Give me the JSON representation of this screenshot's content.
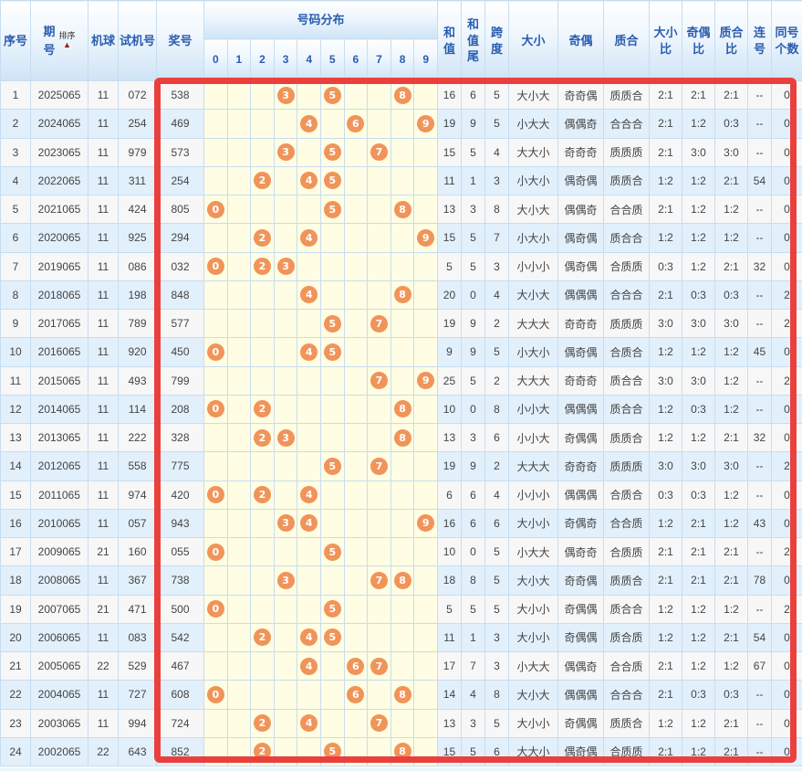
{
  "colors": {
    "header_text": "#2A5DB0",
    "ball_fill": "#F0945A",
    "highlight_border": "#EA403D",
    "row_odd_bg": "#F7F7F7",
    "row_even_bg": "#E2F0FB",
    "dist_bg": "#FFFDE3",
    "grid_line": "#C7DDF0"
  },
  "table": {
    "headers": {
      "seq": "序号",
      "period_char1": "期",
      "period_char2": "号",
      "sort_label": "排序",
      "sort_arrow": "▲",
      "machine": "机球",
      "test_no": "试机号",
      "prize_no": "奖号",
      "distribution": "号码分布",
      "digits": [
        "0",
        "1",
        "2",
        "3",
        "4",
        "5",
        "6",
        "7",
        "8",
        "9"
      ],
      "sum": "和值",
      "sum_tail": "和值尾",
      "span": "跨度",
      "size": "大小",
      "parity": "奇偶",
      "prime": "质合",
      "size_ratio": "大小比",
      "parity_ratio": "奇偶比",
      "prime_ratio": "质合比",
      "consecutive": "连号",
      "same_count": "同号个数"
    },
    "rows": [
      {
        "seq": "1",
        "period": "2025065",
        "machine": "11",
        "test": "072",
        "prize": "538",
        "balls": [
          3,
          5,
          8
        ],
        "sum": "16",
        "sum_tail": "6",
        "span": "5",
        "size": "大小大",
        "parity": "奇奇偶",
        "prime": "质质合",
        "size_ratio": "2:1",
        "parity_ratio": "2:1",
        "prime_ratio": "2:1",
        "consecutive": "--",
        "same_count": "0"
      },
      {
        "seq": "2",
        "period": "2024065",
        "machine": "11",
        "test": "254",
        "prize": "469",
        "balls": [
          4,
          6,
          9
        ],
        "sum": "19",
        "sum_tail": "9",
        "span": "5",
        "size": "小大大",
        "parity": "偶偶奇",
        "prime": "合合合",
        "size_ratio": "2:1",
        "parity_ratio": "1:2",
        "prime_ratio": "0:3",
        "consecutive": "--",
        "same_count": "0"
      },
      {
        "seq": "3",
        "period": "2023065",
        "machine": "11",
        "test": "979",
        "prize": "573",
        "balls": [
          3,
          5,
          7
        ],
        "sum": "15",
        "sum_tail": "5",
        "span": "4",
        "size": "大大小",
        "parity": "奇奇奇",
        "prime": "质质质",
        "size_ratio": "2:1",
        "parity_ratio": "3:0",
        "prime_ratio": "3:0",
        "consecutive": "--",
        "same_count": "0"
      },
      {
        "seq": "4",
        "period": "2022065",
        "machine": "11",
        "test": "311",
        "prize": "254",
        "balls": [
          2,
          4,
          5
        ],
        "sum": "11",
        "sum_tail": "1",
        "span": "3",
        "size": "小大小",
        "parity": "偶奇偶",
        "prime": "质质合",
        "size_ratio": "1:2",
        "parity_ratio": "1:2",
        "prime_ratio": "2:1",
        "consecutive": "54",
        "same_count": "0"
      },
      {
        "seq": "5",
        "period": "2021065",
        "machine": "11",
        "test": "424",
        "prize": "805",
        "balls": [
          0,
          5,
          8
        ],
        "sum": "13",
        "sum_tail": "3",
        "span": "8",
        "size": "大小大",
        "parity": "偶偶奇",
        "prime": "合合质",
        "size_ratio": "2:1",
        "parity_ratio": "1:2",
        "prime_ratio": "1:2",
        "consecutive": "--",
        "same_count": "0"
      },
      {
        "seq": "6",
        "period": "2020065",
        "machine": "11",
        "test": "925",
        "prize": "294",
        "balls": [
          2,
          4,
          9
        ],
        "sum": "15",
        "sum_tail": "5",
        "span": "7",
        "size": "小大小",
        "parity": "偶奇偶",
        "prime": "质合合",
        "size_ratio": "1:2",
        "parity_ratio": "1:2",
        "prime_ratio": "1:2",
        "consecutive": "--",
        "same_count": "0"
      },
      {
        "seq": "7",
        "period": "2019065",
        "machine": "11",
        "test": "086",
        "prize": "032",
        "balls": [
          0,
          2,
          3
        ],
        "sum": "5",
        "sum_tail": "5",
        "span": "3",
        "size": "小小小",
        "parity": "偶奇偶",
        "prime": "合质质",
        "size_ratio": "0:3",
        "parity_ratio": "1:2",
        "prime_ratio": "2:1",
        "consecutive": "32",
        "same_count": "0"
      },
      {
        "seq": "8",
        "period": "2018065",
        "machine": "11",
        "test": "198",
        "prize": "848",
        "balls": [
          4,
          8
        ],
        "sum": "20",
        "sum_tail": "0",
        "span": "4",
        "size": "大小大",
        "parity": "偶偶偶",
        "prime": "合合合",
        "size_ratio": "2:1",
        "parity_ratio": "0:3",
        "prime_ratio": "0:3",
        "consecutive": "--",
        "same_count": "2"
      },
      {
        "seq": "9",
        "period": "2017065",
        "machine": "11",
        "test": "789",
        "prize": "577",
        "balls": [
          5,
          7
        ],
        "sum": "19",
        "sum_tail": "9",
        "span": "2",
        "size": "大大大",
        "parity": "奇奇奇",
        "prime": "质质质",
        "size_ratio": "3:0",
        "parity_ratio": "3:0",
        "prime_ratio": "3:0",
        "consecutive": "--",
        "same_count": "2"
      },
      {
        "seq": "10",
        "period": "2016065",
        "machine": "11",
        "test": "920",
        "prize": "450",
        "balls": [
          0,
          4,
          5
        ],
        "sum": "9",
        "sum_tail": "9",
        "span": "5",
        "size": "小大小",
        "parity": "偶奇偶",
        "prime": "合质合",
        "size_ratio": "1:2",
        "parity_ratio": "1:2",
        "prime_ratio": "1:2",
        "consecutive": "45",
        "same_count": "0"
      },
      {
        "seq": "11",
        "period": "2015065",
        "machine": "11",
        "test": "493",
        "prize": "799",
        "balls": [
          7,
          9
        ],
        "sum": "25",
        "sum_tail": "5",
        "span": "2",
        "size": "大大大",
        "parity": "奇奇奇",
        "prime": "质合合",
        "size_ratio": "3:0",
        "parity_ratio": "3:0",
        "prime_ratio": "1:2",
        "consecutive": "--",
        "same_count": "2"
      },
      {
        "seq": "12",
        "period": "2014065",
        "machine": "11",
        "test": "114",
        "prize": "208",
        "balls": [
          0,
          2,
          8
        ],
        "sum": "10",
        "sum_tail": "0",
        "span": "8",
        "size": "小小大",
        "parity": "偶偶偶",
        "prime": "质合合",
        "size_ratio": "1:2",
        "parity_ratio": "0:3",
        "prime_ratio": "1:2",
        "consecutive": "--",
        "same_count": "0"
      },
      {
        "seq": "13",
        "period": "2013065",
        "machine": "11",
        "test": "222",
        "prize": "328",
        "balls": [
          2,
          3,
          8
        ],
        "sum": "13",
        "sum_tail": "3",
        "span": "6",
        "size": "小小大",
        "parity": "奇偶偶",
        "prime": "质质合",
        "size_ratio": "1:2",
        "parity_ratio": "1:2",
        "prime_ratio": "2:1",
        "consecutive": "32",
        "same_count": "0"
      },
      {
        "seq": "14",
        "period": "2012065",
        "machine": "11",
        "test": "558",
        "prize": "775",
        "balls": [
          5,
          7
        ],
        "sum": "19",
        "sum_tail": "9",
        "span": "2",
        "size": "大大大",
        "parity": "奇奇奇",
        "prime": "质质质",
        "size_ratio": "3:0",
        "parity_ratio": "3:0",
        "prime_ratio": "3:0",
        "consecutive": "--",
        "same_count": "2"
      },
      {
        "seq": "15",
        "period": "2011065",
        "machine": "11",
        "test": "974",
        "prize": "420",
        "balls": [
          0,
          2,
          4
        ],
        "sum": "6",
        "sum_tail": "6",
        "span": "4",
        "size": "小小小",
        "parity": "偶偶偶",
        "prime": "合质合",
        "size_ratio": "0:3",
        "parity_ratio": "0:3",
        "prime_ratio": "1:2",
        "consecutive": "--",
        "same_count": "0"
      },
      {
        "seq": "16",
        "period": "2010065",
        "machine": "11",
        "test": "057",
        "prize": "943",
        "balls": [
          3,
          4,
          9
        ],
        "sum": "16",
        "sum_tail": "6",
        "span": "6",
        "size": "大小小",
        "parity": "奇偶奇",
        "prime": "合合质",
        "size_ratio": "1:2",
        "parity_ratio": "2:1",
        "prime_ratio": "1:2",
        "consecutive": "43",
        "same_count": "0"
      },
      {
        "seq": "17",
        "period": "2009065",
        "machine": "21",
        "test": "160",
        "prize": "055",
        "balls": [
          0,
          5
        ],
        "sum": "10",
        "sum_tail": "0",
        "span": "5",
        "size": "小大大",
        "parity": "偶奇奇",
        "prime": "合质质",
        "size_ratio": "2:1",
        "parity_ratio": "2:1",
        "prime_ratio": "2:1",
        "consecutive": "--",
        "same_count": "2"
      },
      {
        "seq": "18",
        "period": "2008065",
        "machine": "11",
        "test": "367",
        "prize": "738",
        "balls": [
          3,
          7,
          8
        ],
        "sum": "18",
        "sum_tail": "8",
        "span": "5",
        "size": "大小大",
        "parity": "奇奇偶",
        "prime": "质质合",
        "size_ratio": "2:1",
        "parity_ratio": "2:1",
        "prime_ratio": "2:1",
        "consecutive": "78",
        "same_count": "0"
      },
      {
        "seq": "19",
        "period": "2007065",
        "machine": "21",
        "test": "471",
        "prize": "500",
        "balls": [
          0,
          5
        ],
        "sum": "5",
        "sum_tail": "5",
        "span": "5",
        "size": "大小小",
        "parity": "奇偶偶",
        "prime": "质合合",
        "size_ratio": "1:2",
        "parity_ratio": "1:2",
        "prime_ratio": "1:2",
        "consecutive": "--",
        "same_count": "2"
      },
      {
        "seq": "20",
        "period": "2006065",
        "machine": "11",
        "test": "083",
        "prize": "542",
        "balls": [
          2,
          4,
          5
        ],
        "sum": "11",
        "sum_tail": "1",
        "span": "3",
        "size": "大小小",
        "parity": "奇偶偶",
        "prime": "质合质",
        "size_ratio": "1:2",
        "parity_ratio": "1:2",
        "prime_ratio": "2:1",
        "consecutive": "54",
        "same_count": "0"
      },
      {
        "seq": "21",
        "period": "2005065",
        "machine": "22",
        "test": "529",
        "prize": "467",
        "balls": [
          4,
          6,
          7
        ],
        "sum": "17",
        "sum_tail": "7",
        "span": "3",
        "size": "小大大",
        "parity": "偶偶奇",
        "prime": "合合质",
        "size_ratio": "2:1",
        "parity_ratio": "1:2",
        "prime_ratio": "1:2",
        "consecutive": "67",
        "same_count": "0"
      },
      {
        "seq": "22",
        "period": "2004065",
        "machine": "11",
        "test": "727",
        "prize": "608",
        "balls": [
          0,
          6,
          8
        ],
        "sum": "14",
        "sum_tail": "4",
        "span": "8",
        "size": "大小大",
        "parity": "偶偶偶",
        "prime": "合合合",
        "size_ratio": "2:1",
        "parity_ratio": "0:3",
        "prime_ratio": "0:3",
        "consecutive": "--",
        "same_count": "0"
      },
      {
        "seq": "23",
        "period": "2003065",
        "machine": "11",
        "test": "994",
        "prize": "724",
        "balls": [
          2,
          4,
          7
        ],
        "sum": "13",
        "sum_tail": "3",
        "span": "5",
        "size": "大小小",
        "parity": "奇偶偶",
        "prime": "质质合",
        "size_ratio": "1:2",
        "parity_ratio": "1:2",
        "prime_ratio": "2:1",
        "consecutive": "--",
        "same_count": "0"
      },
      {
        "seq": "24",
        "period": "2002065",
        "machine": "22",
        "test": "643",
        "prize": "852",
        "balls": [
          2,
          5,
          8
        ],
        "sum": "15",
        "sum_tail": "5",
        "span": "6",
        "size": "大大小",
        "parity": "偶奇偶",
        "prime": "合质质",
        "size_ratio": "2:1",
        "parity_ratio": "1:2",
        "prime_ratio": "2:1",
        "consecutive": "--",
        "same_count": "0"
      }
    ]
  }
}
